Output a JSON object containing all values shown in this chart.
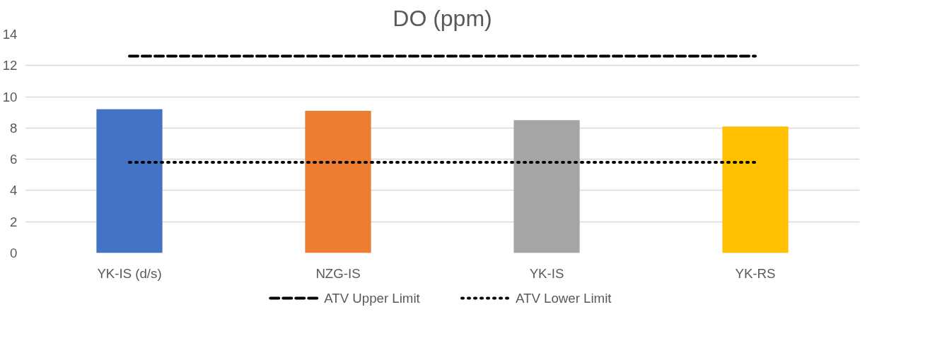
{
  "chart_data": {
    "type": "bar",
    "title": "DO (ppm)",
    "categories": [
      "YK-IS (d/s)",
      "NZG-IS",
      "YK-IS",
      "YK-RS"
    ],
    "series": [
      {
        "type": "bar",
        "colors": [
          "#4472c4",
          "#ed7d31",
          "#a5a5a5",
          "#ffc000"
        ],
        "values": [
          9.2,
          9.1,
          8.5,
          8.1
        ]
      },
      {
        "type": "line",
        "name": "ATV Upper Limit",
        "color": "#000000",
        "line_style": "dashed",
        "values": [
          12.6,
          12.6,
          12.6,
          12.6
        ]
      },
      {
        "type": "line",
        "name": "ATV Lower Limit",
        "color": "#000000",
        "line_style": "dotted",
        "values": [
          5.8,
          5.8,
          5.8,
          5.8
        ]
      }
    ],
    "ylim": [
      0,
      14
    ],
    "yticks": [
      0,
      2,
      4,
      6,
      8,
      10,
      12,
      14
    ],
    "grid": "y",
    "legend": "bottom",
    "marker": "none"
  }
}
